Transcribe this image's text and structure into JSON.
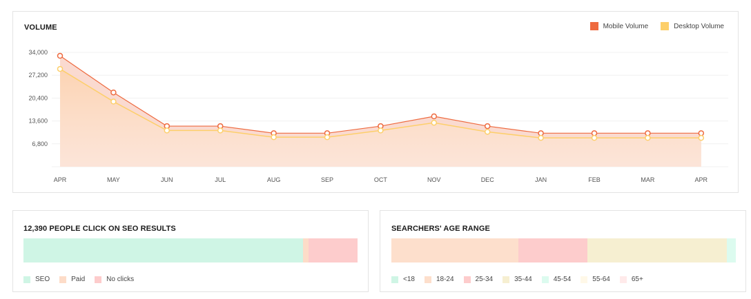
{
  "chart_data": {
    "type": "area",
    "title": "VOLUME",
    "categories": [
      "APR",
      "MAY",
      "JUN",
      "JUL",
      "AUG",
      "SEP",
      "OCT",
      "NOV",
      "DEC",
      "JAN",
      "FEB",
      "MAR",
      "APR"
    ],
    "y_ticks": [
      "34,000",
      "27,200",
      "20,400",
      "13,600",
      "6,800"
    ],
    "y_tick_values": [
      34000,
      27200,
      20400,
      13600,
      6800
    ],
    "ylim": [
      0,
      34000
    ],
    "legend_position": "top-right",
    "series": [
      {
        "name": "Mobile Volume",
        "color": "#ee6a3f",
        "values": [
          34200,
          23300,
          13300,
          13300,
          11200,
          11200,
          13300,
          16200,
          13300,
          11200,
          11200,
          11200,
          11200
        ]
      },
      {
        "name": "Desktop Volume",
        "color": "#fdcf6a",
        "values": [
          30300,
          20600,
          12000,
          12000,
          10000,
          10000,
          12000,
          14300,
          11600,
          9800,
          9800,
          9800,
          9800
        ]
      }
    ]
  },
  "seo": {
    "title": "12,390 PEOPLE CLICK ON SEO RESULTS",
    "segments": [
      {
        "label": "SEO",
        "percent": 83.7,
        "color": "#cff5e5"
      },
      {
        "label": "Paid",
        "percent": 1.7,
        "color": "#fddcc8"
      },
      {
        "label": "No clicks",
        "percent": 14.6,
        "color": "#fdcccc"
      }
    ]
  },
  "age": {
    "title": "SEARCHERS' AGE RANGE",
    "segments": [
      {
        "label": "<18",
        "percent": 0,
        "color": "#cff5e5"
      },
      {
        "label": "18-24",
        "percent": 36.9,
        "color": "#fddfcc"
      },
      {
        "label": "25-34",
        "percent": 20.0,
        "color": "#fdcccc"
      },
      {
        "label": "35-44",
        "percent": 40.5,
        "color": "#f6efd1"
      },
      {
        "label": "45-54",
        "percent": 2.6,
        "color": "#dcfbef"
      },
      {
        "label": "55-64",
        "percent": 0,
        "color": "#fff8e8"
      },
      {
        "label": "65+",
        "percent": 0,
        "color": "#ffeaea"
      }
    ]
  }
}
